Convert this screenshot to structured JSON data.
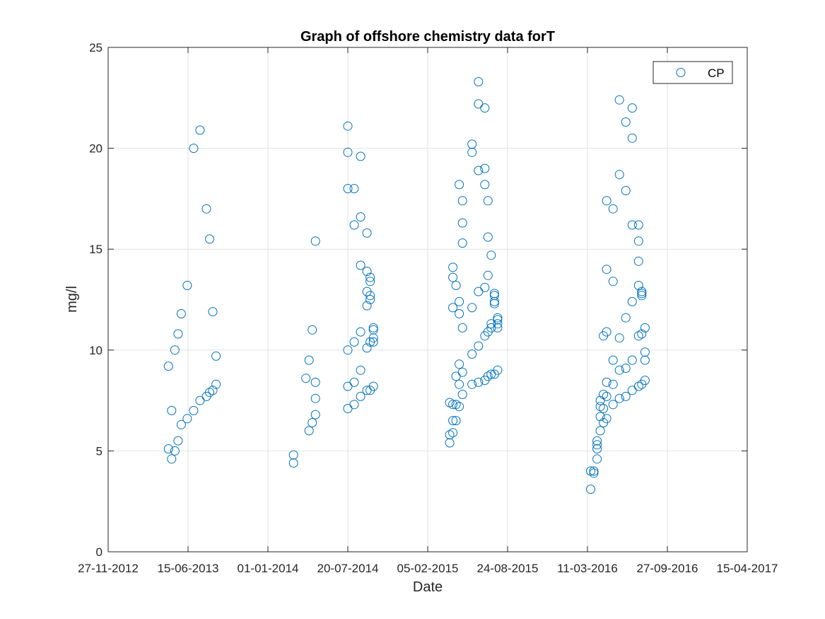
{
  "chart_data": {
    "type": "scatter",
    "title": "Graph of offshore chemistry data forT",
    "xlabel": "Date",
    "ylabel": "mg/l",
    "xlim": [
      "2012-11-27",
      "2017-04-15"
    ],
    "ylim": [
      0,
      25
    ],
    "x_ticks": [
      "27-11-2012",
      "15-06-2013",
      "01-01-2014",
      "20-07-2014",
      "05-02-2015",
      "24-08-2015",
      "11-03-2016",
      "27-09-2016",
      "15-04-2017"
    ],
    "y_ticks": [
      0,
      5,
      10,
      15,
      20,
      25
    ],
    "grid": true,
    "legend_position": "top-right",
    "colors": {
      "series": "#0072bd",
      "grid": "#e2e2e2",
      "axis": "#262626"
    },
    "series": [
      {
        "name": "CP",
        "marker": "circle",
        "points": [
          [
            "2013-04-27",
            9.2
          ],
          [
            "2013-04-27",
            5.1
          ],
          [
            "2013-05-05",
            7.0
          ],
          [
            "2013-05-05",
            4.6
          ],
          [
            "2013-05-13",
            10.0
          ],
          [
            "2013-05-13",
            5.0
          ],
          [
            "2013-05-21",
            10.8
          ],
          [
            "2013-05-21",
            5.5
          ],
          [
            "2013-05-29",
            11.8
          ],
          [
            "2013-05-29",
            6.3
          ],
          [
            "2013-06-13",
            13.2
          ],
          [
            "2013-06-13",
            6.6
          ],
          [
            "2013-06-29",
            20.0
          ],
          [
            "2013-06-29",
            7.0
          ],
          [
            "2013-07-15",
            20.9
          ],
          [
            "2013-07-15",
            7.5
          ],
          [
            "2013-07-31",
            17.0
          ],
          [
            "2013-07-31",
            7.7
          ],
          [
            "2013-08-08",
            15.5
          ],
          [
            "2013-08-08",
            7.9
          ],
          [
            "2013-08-16",
            11.9
          ],
          [
            "2013-08-16",
            8.0
          ],
          [
            "2013-08-24",
            9.7
          ],
          [
            "2013-08-24",
            8.3
          ],
          [
            "2014-03-06",
            4.8
          ],
          [
            "2014-03-06",
            4.4
          ],
          [
            "2014-04-06",
            8.6
          ],
          [
            "2014-04-14",
            9.5
          ],
          [
            "2014-04-14",
            6.0
          ],
          [
            "2014-04-22",
            11.0
          ],
          [
            "2014-04-22",
            6.4
          ],
          [
            "2014-04-30",
            15.4
          ],
          [
            "2014-04-30",
            8.4
          ],
          [
            "2014-04-30",
            7.6
          ],
          [
            "2014-04-30",
            6.8
          ],
          [
            "2014-07-20",
            21.1
          ],
          [
            "2014-07-20",
            19.8
          ],
          [
            "2014-07-20",
            18.0
          ],
          [
            "2014-07-20",
            10.0
          ],
          [
            "2014-07-20",
            8.2
          ],
          [
            "2014-07-20",
            7.1
          ],
          [
            "2014-08-05",
            18.0
          ],
          [
            "2014-08-05",
            16.2
          ],
          [
            "2014-08-05",
            10.4
          ],
          [
            "2014-08-05",
            8.4
          ],
          [
            "2014-08-05",
            7.3
          ],
          [
            "2014-08-21",
            19.6
          ],
          [
            "2014-08-21",
            16.6
          ],
          [
            "2014-08-21",
            14.2
          ],
          [
            "2014-08-21",
            10.9
          ],
          [
            "2014-08-21",
            9.0
          ],
          [
            "2014-08-21",
            7.7
          ],
          [
            "2014-09-06",
            15.8
          ],
          [
            "2014-09-06",
            13.9
          ],
          [
            "2014-09-06",
            12.9
          ],
          [
            "2014-09-06",
            12.2
          ],
          [
            "2014-09-06",
            10.1
          ],
          [
            "2014-09-06",
            8.0
          ],
          [
            "2014-09-14",
            13.6
          ],
          [
            "2014-09-14",
            13.4
          ],
          [
            "2014-09-14",
            12.7
          ],
          [
            "2014-09-14",
            12.5
          ],
          [
            "2014-09-14",
            10.4
          ],
          [
            "2014-09-14",
            8.0
          ],
          [
            "2014-09-22",
            11.1
          ],
          [
            "2014-09-22",
            11.0
          ],
          [
            "2014-09-22",
            10.6
          ],
          [
            "2014-09-22",
            10.4
          ],
          [
            "2014-09-22",
            8.2
          ],
          [
            "2015-04-01",
            7.4
          ],
          [
            "2015-04-01",
            5.8
          ],
          [
            "2015-04-01",
            5.4
          ],
          [
            "2015-04-09",
            14.1
          ],
          [
            "2015-04-09",
            13.6
          ],
          [
            "2015-04-09",
            12.1
          ],
          [
            "2015-04-09",
            7.3
          ],
          [
            "2015-04-09",
            6.5
          ],
          [
            "2015-04-09",
            5.9
          ],
          [
            "2015-04-17",
            13.2
          ],
          [
            "2015-04-17",
            8.7
          ],
          [
            "2015-04-17",
            7.3
          ],
          [
            "2015-04-17",
            6.5
          ],
          [
            "2015-04-25",
            18.2
          ],
          [
            "2015-04-25",
            12.4
          ],
          [
            "2015-04-25",
            11.8
          ],
          [
            "2015-04-25",
            9.3
          ],
          [
            "2015-04-25",
            8.3
          ],
          [
            "2015-04-25",
            7.2
          ],
          [
            "2015-05-03",
            17.4
          ],
          [
            "2015-05-03",
            16.3
          ],
          [
            "2015-05-03",
            15.3
          ],
          [
            "2015-05-03",
            11.1
          ],
          [
            "2015-05-03",
            8.9
          ],
          [
            "2015-05-03",
            7.8
          ],
          [
            "2015-05-27",
            20.2
          ],
          [
            "2015-05-27",
            19.8
          ],
          [
            "2015-05-27",
            12.1
          ],
          [
            "2015-05-27",
            9.8
          ],
          [
            "2015-05-27",
            8.3
          ],
          [
            "2015-06-12",
            23.3
          ],
          [
            "2015-06-12",
            22.2
          ],
          [
            "2015-06-12",
            18.9
          ],
          [
            "2015-06-12",
            12.9
          ],
          [
            "2015-06-12",
            10.2
          ],
          [
            "2015-06-12",
            8.4
          ],
          [
            "2015-06-28",
            22.0
          ],
          [
            "2015-06-28",
            19.0
          ],
          [
            "2015-06-28",
            18.2
          ],
          [
            "2015-06-28",
            13.1
          ],
          [
            "2015-06-28",
            10.7
          ],
          [
            "2015-06-28",
            8.5
          ],
          [
            "2015-07-06",
            17.4
          ],
          [
            "2015-07-06",
            15.6
          ],
          [
            "2015-07-06",
            13.7
          ],
          [
            "2015-07-06",
            10.9
          ],
          [
            "2015-07-06",
            8.7
          ],
          [
            "2015-07-14",
            14.7
          ],
          [
            "2015-07-14",
            11.3
          ],
          [
            "2015-07-14",
            11.1
          ],
          [
            "2015-07-14",
            8.8
          ],
          [
            "2015-07-22",
            12.8
          ],
          [
            "2015-07-22",
            12.7
          ],
          [
            "2015-07-22",
            12.4
          ],
          [
            "2015-07-22",
            12.3
          ],
          [
            "2015-07-22",
            8.8
          ],
          [
            "2015-07-30",
            11.6
          ],
          [
            "2015-07-30",
            11.5
          ],
          [
            "2015-07-30",
            11.3
          ],
          [
            "2015-07-30",
            11.1
          ],
          [
            "2015-07-30",
            9.0
          ],
          [
            "2016-03-19",
            4.0
          ],
          [
            "2016-03-19",
            3.1
          ],
          [
            "2016-03-27",
            4.0
          ],
          [
            "2016-03-27",
            3.9
          ],
          [
            "2016-04-04",
            5.5
          ],
          [
            "2016-04-04",
            5.3
          ],
          [
            "2016-04-04",
            5.1
          ],
          [
            "2016-04-04",
            4.6
          ],
          [
            "2016-04-12",
            7.5
          ],
          [
            "2016-04-12",
            7.2
          ],
          [
            "2016-04-12",
            6.7
          ],
          [
            "2016-04-12",
            6.0
          ],
          [
            "2016-04-20",
            10.7
          ],
          [
            "2016-04-20",
            7.8
          ],
          [
            "2016-04-20",
            7.1
          ],
          [
            "2016-04-20",
            6.4
          ],
          [
            "2016-04-28",
            17.4
          ],
          [
            "2016-04-28",
            14.0
          ],
          [
            "2016-04-28",
            10.9
          ],
          [
            "2016-04-28",
            8.4
          ],
          [
            "2016-04-28",
            7.7
          ],
          [
            "2016-04-28",
            6.6
          ],
          [
            "2016-05-14",
            17.0
          ],
          [
            "2016-05-14",
            13.4
          ],
          [
            "2016-05-14",
            9.5
          ],
          [
            "2016-05-14",
            8.3
          ],
          [
            "2016-05-14",
            7.3
          ],
          [
            "2016-05-30",
            22.4
          ],
          [
            "2016-05-30",
            18.7
          ],
          [
            "2016-05-30",
            10.6
          ],
          [
            "2016-05-30",
            9.0
          ],
          [
            "2016-05-30",
            7.6
          ],
          [
            "2016-06-15",
            21.3
          ],
          [
            "2016-06-15",
            17.9
          ],
          [
            "2016-06-15",
            11.6
          ],
          [
            "2016-06-15",
            9.1
          ],
          [
            "2016-06-15",
            7.7
          ],
          [
            "2016-07-01",
            22.0
          ],
          [
            "2016-07-01",
            20.5
          ],
          [
            "2016-07-01",
            16.2
          ],
          [
            "2016-07-01",
            12.4
          ],
          [
            "2016-07-01",
            9.5
          ],
          [
            "2016-07-01",
            8.0
          ],
          [
            "2016-07-17",
            16.2
          ],
          [
            "2016-07-17",
            15.4
          ],
          [
            "2016-07-17",
            14.4
          ],
          [
            "2016-07-17",
            13.2
          ],
          [
            "2016-07-17",
            10.7
          ],
          [
            "2016-07-17",
            8.2
          ],
          [
            "2016-07-25",
            12.9
          ],
          [
            "2016-07-25",
            12.8
          ],
          [
            "2016-07-25",
            12.7
          ],
          [
            "2016-07-25",
            10.8
          ],
          [
            "2016-07-25",
            8.3
          ],
          [
            "2016-08-02",
            11.1
          ],
          [
            "2016-08-02",
            9.9
          ],
          [
            "2016-08-02",
            9.5
          ],
          [
            "2016-08-02",
            8.5
          ]
        ]
      }
    ]
  }
}
